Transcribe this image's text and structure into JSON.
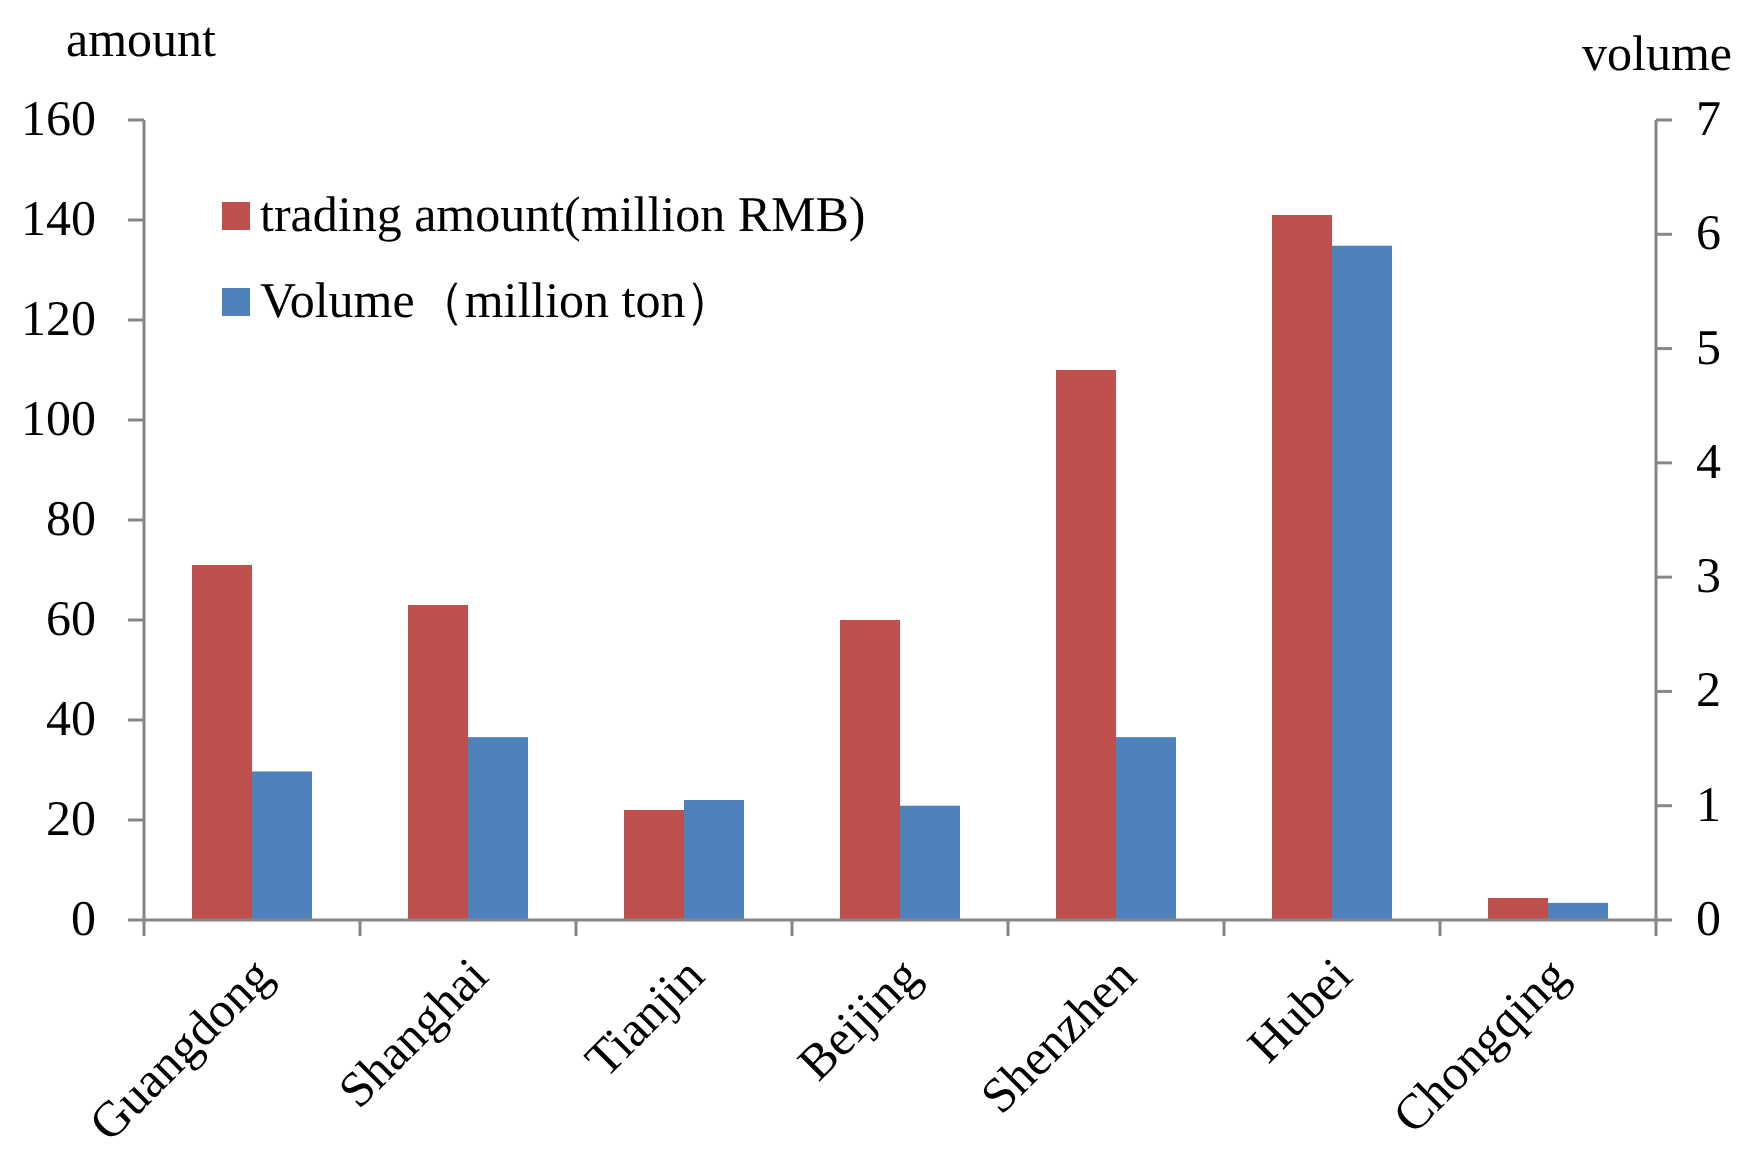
{
  "chart_data": {
    "type": "bar",
    "ylabel": "amount",
    "y2label": "volume",
    "categories": [
      "Guangdong",
      "Shanghai",
      "Tianjin",
      "Beijing",
      "Shenzhen",
      "Hubei",
      "Chongqing"
    ],
    "ylim": [
      0,
      160
    ],
    "yticks": [
      0,
      20,
      40,
      60,
      80,
      100,
      120,
      140,
      160
    ],
    "y2lim": [
      0,
      7
    ],
    "y2ticks": [
      0,
      1,
      2,
      3,
      4,
      5,
      6,
      7
    ],
    "legend": "top left",
    "series": [
      {
        "name": "trading amount(million RMB)",
        "color": "#c0504d",
        "values": [
          71,
          63,
          22,
          60,
          110,
          141,
          4.4
        ]
      },
      {
        "name": "Volume（million ton）",
        "color": "#4f81bd",
        "axis": "y2",
        "values": [
          1.3,
          1.6,
          1.05,
          1.0,
          1.6,
          5.9,
          0.15
        ]
      }
    ]
  }
}
